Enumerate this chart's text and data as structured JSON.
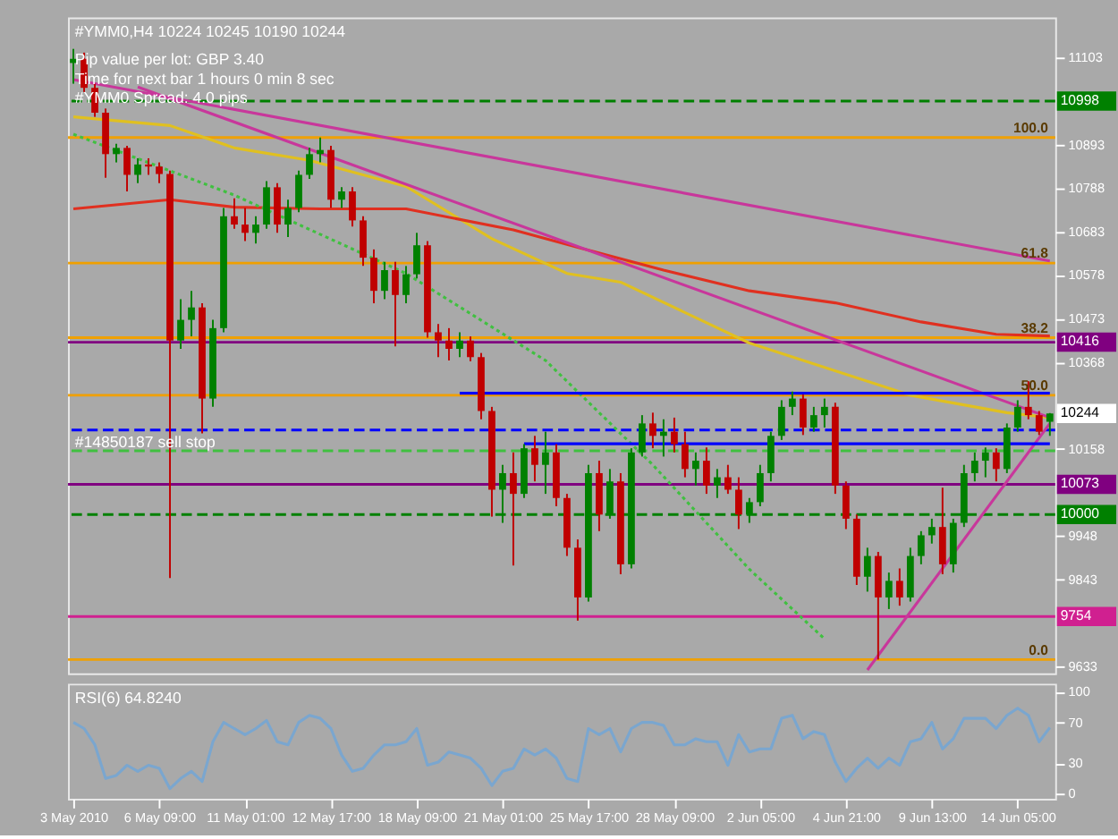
{
  "chart_data": [
    {
      "type": "candlestick",
      "title": "#YMM0,H4 10224 10245 10190 10244",
      "annotations": [
        "Pip value per lot: GBP 3.40",
        "Time for next bar 1 hours 0 min 8 sec",
        "#YMM0 Spread: 4.0 pips",
        "10244",
        {
          "text": "100.0",
          "y": 10910
        },
        {
          "text": "61.8",
          "y": 10607
        },
        {
          "text": "38.2",
          "y": 10427
        },
        {
          "text": "50.0",
          "y": 10288
        },
        {
          "text": "0.0",
          "y": 9650
        }
      ],
      "categories": [
        null,
        null,
        null,
        null,
        null,
        null,
        null,
        null,
        null,
        null,
        null,
        null,
        null,
        null,
        null,
        null,
        null,
        null,
        null,
        null,
        null,
        null,
        null,
        null,
        null,
        null,
        null,
        null,
        null,
        null,
        null,
        null,
        null,
        null,
        null,
        null,
        null,
        null,
        null,
        null,
        null,
        null,
        null,
        null,
        null,
        null,
        null,
        null,
        null,
        null,
        null,
        null,
        null,
        null,
        null,
        null,
        null,
        null,
        null,
        null,
        null,
        null,
        null,
        null,
        null,
        null,
        null,
        null,
        null,
        null,
        null,
        null,
        null,
        null,
        null,
        null,
        null,
        null,
        null,
        null,
        null,
        null,
        null,
        null,
        null,
        null,
        null,
        null,
        null,
        null,
        null,
        null
      ],
      "ohlc": [
        [
          11090,
          11124,
          11040,
          11100
        ],
        [
          11100,
          11115,
          11020,
          11030
        ],
        [
          11030,
          11040,
          10960,
          10970
        ],
        [
          10970,
          10980,
          10813,
          10870
        ],
        [
          10870,
          10895,
          10850,
          10885
        ],
        [
          10885,
          10890,
          10780,
          10820
        ],
        [
          10820,
          10860,
          10800,
          10845
        ],
        [
          10845,
          10860,
          10820,
          10840
        ],
        [
          10840,
          10850,
          10800,
          10822
        ],
        [
          10822,
          10830,
          9847,
          10420
        ],
        [
          10420,
          10520,
          10400,
          10470
        ],
        [
          10470,
          10540,
          10430,
          10500
        ],
        [
          10500,
          10510,
          10196,
          10280
        ],
        [
          10280,
          10470,
          10260,
          10450
        ],
        [
          10450,
          10740,
          10440,
          10720
        ],
        [
          10720,
          10763,
          10690,
          10700
        ],
        [
          10700,
          10740,
          10660,
          10680
        ],
        [
          10680,
          10720,
          10654,
          10700
        ],
        [
          10700,
          10805,
          10690,
          10790
        ],
        [
          10790,
          10800,
          10680,
          10700
        ],
        [
          10700,
          10760,
          10670,
          10740
        ],
        [
          10740,
          10830,
          10730,
          10820
        ],
        [
          10820,
          10885,
          10810,
          10870
        ],
        [
          10870,
          10910,
          10850,
          10880
        ],
        [
          10880,
          10890,
          10740,
          10760
        ],
        [
          10760,
          10790,
          10740,
          10780
        ],
        [
          10780,
          10790,
          10695,
          10710
        ],
        [
          10710,
          10720,
          10600,
          10620
        ],
        [
          10620,
          10640,
          10510,
          10540
        ],
        [
          10540,
          10610,
          10520,
          10590
        ],
        [
          10590,
          10610,
          10406,
          10530
        ],
        [
          10530,
          10600,
          10510,
          10580
        ],
        [
          10580,
          10680,
          10570,
          10650
        ],
        [
          10650,
          10660,
          10427,
          10440
        ],
        [
          10440,
          10460,
          10380,
          10420
        ],
        [
          10420,
          10450,
          10372,
          10400
        ],
        [
          10400,
          10440,
          10380,
          10420
        ],
        [
          10420,
          10430,
          10370,
          10380
        ],
        [
          10380,
          10390,
          10230,
          10250
        ],
        [
          10250,
          10260,
          9995,
          10060
        ],
        [
          10060,
          10120,
          9980,
          10100
        ],
        [
          10100,
          10150,
          9877,
          10050
        ],
        [
          10050,
          10170,
          10040,
          10160
        ],
        [
          10160,
          10190,
          10080,
          10120
        ],
        [
          10120,
          10200,
          10050,
          10150
        ],
        [
          10150,
          10170,
          10020,
          10040
        ],
        [
          10040,
          10050,
          9900,
          9920
        ],
        [
          9920,
          9940,
          9744,
          9800
        ],
        [
          9800,
          10120,
          9790,
          10100
        ],
        [
          10100,
          10130,
          9960,
          10000
        ],
        [
          10000,
          10110,
          9990,
          10080
        ],
        [
          10080,
          10100,
          9856,
          9880
        ],
        [
          9880,
          10160,
          9870,
          10150
        ],
        [
          10150,
          10240,
          10140,
          10220
        ],
        [
          10220,
          10246,
          10160,
          10190
        ],
        [
          10190,
          10230,
          10140,
          10200
        ],
        [
          10200,
          10234,
          10150,
          10170
        ],
        [
          10170,
          10200,
          10090,
          10110
        ],
        [
          10110,
          10150,
          10070,
          10130
        ],
        [
          10130,
          10162,
          10050,
          10070
        ],
        [
          10070,
          10110,
          10040,
          10090
        ],
        [
          10090,
          10120,
          10050,
          10060
        ],
        [
          10060,
          10090,
          9965,
          10000
        ],
        [
          10000,
          10040,
          9980,
          10030
        ],
        [
          10030,
          10120,
          10020,
          10100
        ],
        [
          10100,
          10200,
          10080,
          10190
        ],
        [
          10190,
          10276,
          10180,
          10260
        ],
        [
          10260,
          10297,
          10240,
          10280
        ],
        [
          10280,
          10290,
          10192,
          10210
        ],
        [
          10210,
          10260,
          10200,
          10240
        ],
        [
          10240,
          10280,
          10210,
          10260
        ],
        [
          10260,
          10270,
          10050,
          10070
        ],
        [
          10070,
          10080,
          9965,
          9990
        ],
        [
          9990,
          10000,
          9830,
          9850
        ],
        [
          9850,
          9920,
          9814,
          9900
        ],
        [
          9900,
          9910,
          9650,
          9800
        ],
        [
          9800,
          9860,
          9772,
          9840
        ],
        [
          9840,
          9870,
          9780,
          9800
        ],
        [
          9800,
          9920,
          9790,
          9900
        ],
        [
          9900,
          9960,
          9880,
          9950
        ],
        [
          9950,
          9990,
          9930,
          9970
        ],
        [
          9970,
          10065,
          9856,
          9880
        ],
        [
          9880,
          9990,
          9860,
          9980
        ],
        [
          9980,
          10120,
          9970,
          10100
        ],
        [
          10100,
          10150,
          10080,
          10130
        ],
        [
          10130,
          10162,
          10090,
          10150
        ],
        [
          10150,
          10160,
          10080,
          10110
        ],
        [
          10110,
          10220,
          10100,
          10210
        ],
        [
          10210,
          10276,
          10200,
          10260
        ],
        [
          10260,
          10322,
          10230,
          10240
        ],
        [
          10240,
          10250,
          10192,
          10200
        ],
        [
          10224,
          10245,
          10190,
          10244
        ]
      ],
      "colors": [
        "#008000",
        "#c00000",
        "#c00000",
        "#c00000",
        "#008000",
        "#c00000",
        "#008000",
        "#c00000",
        "#c00000",
        "#c00000",
        "#008000",
        "#008000",
        "#c00000",
        "#008000",
        "#008000",
        "#c00000",
        "#c00000",
        "#008000",
        "#008000",
        "#c00000",
        "#008000",
        "#008000",
        "#008000",
        "#008000",
        "#c00000",
        "#008000",
        "#c00000",
        "#c00000",
        "#c00000",
        "#008000",
        "#c00000",
        "#008000",
        "#008000",
        "#c00000",
        "#c00000",
        "#c00000",
        "#008000",
        "#c00000",
        "#c00000",
        "#c00000",
        "#008000",
        "#c00000",
        "#008000",
        "#c00000",
        "#008000",
        "#c00000",
        "#c00000",
        "#c00000",
        "#008000",
        "#c00000",
        "#008000",
        "#c00000",
        "#008000",
        "#008000",
        "#c00000",
        "#008000",
        "#c00000",
        "#c00000",
        "#008000",
        "#c00000",
        "#008000",
        "#c00000",
        "#c00000",
        "#008000",
        "#008000",
        "#008000",
        "#008000",
        "#008000",
        "#c00000",
        "#008000",
        "#008000",
        "#c00000",
        "#c00000",
        "#c00000",
        "#008000",
        "#c00000",
        "#008000",
        "#c00000",
        "#008000",
        "#008000",
        "#008000",
        "#c00000",
        "#008000",
        "#008000",
        "#008000",
        "#008000",
        "#c00000",
        "#008000",
        "#008000",
        "#c00000",
        "#c00000",
        "#008000"
      ],
      "series": [
        {
          "type": "line",
          "color": "#e0c020",
          "values": [
            10960,
            null,
            null,
            null,
            null,
            null,
            null,
            null,
            null,
            10939,
            null,
            null,
            null,
            null,
            null,
            10885,
            null,
            null,
            null,
            null,
            null,
            null,
            10855,
            null,
            null,
            null,
            null,
            null,
            null,
            null,
            null,
            10792,
            null,
            null,
            null,
            null,
            null,
            null,
            null,
            10666,
            null,
            null,
            null,
            null,
            null,
            null,
            10582,
            null,
            null,
            null,
            null,
            10561,
            null,
            null,
            null,
            null,
            null,
            null,
            null,
            null,
            null,
            null,
            null,
            10414,
            null,
            null,
            null,
            null,
            null,
            null,
            null,
            null,
            null,
            null,
            null,
            null,
            null,
            null,
            10288,
            null,
            null,
            null,
            null,
            null,
            null,
            null,
            null,
            10246,
            null,
            null,
            null,
            10234
          ]
        },
        {
          "type": "line",
          "color": "#e03020",
          "values": [
            10738,
            null,
            null,
            null,
            null,
            null,
            null,
            null,
            null,
            10760,
            null,
            null,
            null,
            null,
            null,
            10742,
            null,
            null,
            null,
            null,
            null,
            null,
            null,
            10738,
            null,
            null,
            null,
            null,
            null,
            null,
            null,
            10738,
            null,
            null,
            null,
            null,
            null,
            null,
            null,
            null,
            null,
            10687,
            null,
            null,
            null,
            null,
            null,
            10645,
            null,
            null,
            null,
            null,
            null,
            null,
            null,
            10590,
            null,
            null,
            null,
            null,
            null,
            null,
            null,
            10540,
            null,
            null,
            null,
            null,
            null,
            null,
            null,
            10511,
            null,
            null,
            null,
            null,
            null,
            null,
            null,
            10465,
            null,
            null,
            null,
            null,
            null,
            null,
            10435,
            null,
            null,
            null,
            null,
            10431
          ]
        },
        {
          "type": "line",
          "color": "#40c040",
          "line_style": "dotted",
          "values": [
            10918,
            null,
            null,
            null,
            null,
            null,
            null,
            null,
            null,
            null,
            null,
            null,
            null,
            null,
            null,
            10771,
            null,
            null,
            null,
            null,
            null,
            null,
            null,
            null,
            null,
            null,
            null,
            null,
            null,
            null,
            null,
            10582,
            null,
            null,
            null,
            null,
            null,
            null,
            null,
            null,
            null,
            null,
            null,
            null,
            10372,
            null,
            null,
            null,
            null,
            null,
            null,
            null,
            null,
            null,
            10120,
            null,
            null,
            null,
            null,
            null,
            null,
            null,
            null,
            9868,
            null,
            null,
            null,
            null,
            null,
            null,
            9700,
            null,
            null,
            null,
            null,
            null,
            null,
            null,
            null,
            null,
            null,
            null,
            null,
            null,
            null,
            null,
            null,
            null,
            null,
            null,
            null,
            null
          ]
        },
        {
          "type": "line",
          "color": "#c8379b",
          "values": [
            11050,
            null,
            null,
            null,
            null,
            null,
            null,
            null,
            null,
            null,
            null,
            null,
            null,
            null,
            null,
            null,
            null,
            null,
            null,
            null,
            null,
            null,
            null,
            null,
            null,
            null,
            null,
            null,
            null,
            null,
            null,
            null,
            null,
            null,
            null,
            null,
            null,
            null,
            null,
            null,
            null,
            null,
            null,
            null,
            null,
            null,
            null,
            null,
            null,
            null,
            null,
            null,
            null,
            null,
            null,
            null,
            null,
            null,
            null,
            null,
            null,
            null,
            null,
            null,
            null,
            null,
            null,
            null,
            null,
            null,
            null,
            null,
            null,
            null,
            null,
            null,
            null,
            null,
            null,
            null,
            null,
            null,
            null,
            null,
            null,
            null,
            null,
            null,
            null,
            null,
            null,
            10612
          ]
        },
        {
          "type": "line",
          "color": "#c8379b",
          "values": [
            null,
            null,
            null,
            null,
            null,
            null,
            11032,
            null,
            null,
            null,
            null,
            null,
            null,
            null,
            null,
            null,
            null,
            null,
            null,
            null,
            null,
            null,
            null,
            null,
            null,
            null,
            null,
            null,
            null,
            null,
            null,
            null,
            null,
            null,
            null,
            null,
            null,
            null,
            null,
            null,
            null,
            null,
            null,
            null,
            null,
            null,
            null,
            null,
            null,
            null,
            null,
            null,
            null,
            null,
            null,
            null,
            null,
            null,
            null,
            null,
            null,
            null,
            null,
            null,
            null,
            null,
            null,
            null,
            null,
            null,
            null,
            null,
            null,
            null,
            null,
            null,
            null,
            null,
            null,
            null,
            null,
            null,
            null,
            null,
            null,
            null,
            null,
            null,
            null,
            null,
            null,
            10234
          ]
        },
        {
          "type": "line",
          "color": "#c8379b",
          "values": [
            null,
            null,
            null,
            null,
            null,
            null,
            null,
            null,
            null,
            null,
            null,
            null,
            null,
            null,
            null,
            null,
            null,
            null,
            null,
            null,
            null,
            null,
            null,
            null,
            null,
            null,
            null,
            null,
            null,
            null,
            null,
            null,
            null,
            null,
            null,
            null,
            null,
            null,
            null,
            null,
            null,
            null,
            null,
            null,
            null,
            null,
            null,
            null,
            null,
            null,
            null,
            null,
            null,
            null,
            null,
            null,
            null,
            null,
            null,
            null,
            null,
            null,
            null,
            null,
            null,
            null,
            null,
            null,
            null,
            null,
            null,
            null,
            null,
            null,
            9625,
            null,
            null,
            null,
            null,
            null,
            null,
            null,
            null,
            null,
            null,
            null,
            null,
            null,
            null,
            null,
            null,
            10220
          ]
        },
        {
          "type": "line",
          "color": "#0000ff",
          "values": [
            null,
            null,
            null,
            null,
            null,
            null,
            null,
            null,
            null,
            null,
            null,
            null,
            null,
            null,
            null,
            null,
            null,
            null,
            null,
            null,
            null,
            null,
            null,
            null,
            null,
            null,
            null,
            null,
            null,
            null,
            null,
            null,
            null,
            null,
            null,
            null,
            10293,
            null,
            null,
            null,
            null,
            null,
            null,
            null,
            null,
            null,
            null,
            null,
            null,
            null,
            null,
            null,
            null,
            null,
            null,
            null,
            null,
            null,
            null,
            null,
            null,
            null,
            null,
            null,
            null,
            null,
            null,
            null,
            null,
            null,
            null,
            null,
            null,
            null,
            null,
            null,
            null,
            null,
            null,
            null,
            null,
            null,
            null,
            null,
            null,
            null,
            null,
            null,
            null,
            null,
            null,
            10293
          ]
        },
        {
          "type": "line",
          "color": "#0000ff",
          "values": [
            null,
            null,
            null,
            null,
            null,
            null,
            null,
            null,
            null,
            null,
            null,
            null,
            null,
            null,
            null,
            null,
            null,
            null,
            null,
            null,
            null,
            null,
            null,
            null,
            null,
            null,
            null,
            null,
            null,
            null,
            null,
            null,
            null,
            null,
            null,
            null,
            null,
            null,
            null,
            null,
            null,
            null,
            10171,
            null,
            null,
            null,
            null,
            null,
            null,
            null,
            null,
            null,
            null,
            null,
            null,
            null,
            null,
            null,
            null,
            null,
            null,
            null,
            null,
            null,
            null,
            null,
            null,
            null,
            null,
            null,
            null,
            null,
            null,
            null,
            null,
            null,
            null,
            null,
            null,
            null,
            null,
            null,
            null,
            null,
            null,
            null,
            null,
            null,
            null,
            null,
            null,
            10171
          ]
        }
      ],
      "ref_lines": [
        {
          "axis": "y",
          "value": 10998,
          "label": "10998",
          "color": "#008000",
          "line_style": "dashed"
        },
        {
          "axis": "y",
          "value": 10910,
          "color": "#f0a000"
        },
        {
          "axis": "y",
          "value": 10607,
          "color": "#f0a000"
        },
        {
          "axis": "y",
          "value": 10427,
          "color": "#f0a000"
        },
        {
          "axis": "y",
          "value": 10416,
          "label": "10416",
          "color": "#800080"
        },
        {
          "axis": "y",
          "value": 10288,
          "color": "#f0a000"
        },
        {
          "axis": "y",
          "value": 10204,
          "label": "#14850187 sell stop",
          "color": "#0000ff",
          "line_style": "dashed"
        },
        {
          "axis": "y",
          "value": 10154,
          "color": "#40c040",
          "line_style": "dashed"
        },
        {
          "axis": "y",
          "value": 10073,
          "label": "10073",
          "color": "#800080"
        },
        {
          "axis": "y",
          "value": 10000,
          "label": "10000",
          "color": "#008000",
          "line_style": "dashed"
        },
        {
          "axis": "y",
          "value": 9754,
          "label": "9754",
          "color": "#d02090"
        },
        {
          "axis": "y",
          "value": 9650,
          "color": "#f0a000"
        }
      ],
      "ylim": [
        9617,
        11200
      ],
      "yticks": [
        11103,
        10893,
        10788,
        10683,
        10578,
        10473,
        10368,
        10158,
        9948,
        9843,
        9633
      ],
      "tick_labels": "y"
    },
    {
      "type": "line",
      "title": "RSI(6) 64.8240",
      "categories": [
        "3 May 2010",
        null,
        null,
        null,
        null,
        null,
        null,
        null,
        "6 May 09:00",
        null,
        null,
        null,
        null,
        null,
        null,
        null,
        "11 May 01:00",
        null,
        null,
        null,
        null,
        null,
        null,
        null,
        "12 May 17:00",
        null,
        null,
        null,
        null,
        null,
        null,
        null,
        "18 May 09:00",
        null,
        null,
        null,
        null,
        null,
        null,
        null,
        "21 May 01:00",
        null,
        null,
        null,
        null,
        null,
        null,
        null,
        "25 May 17:00",
        null,
        null,
        null,
        null,
        null,
        null,
        null,
        "28 May 09:00",
        null,
        null,
        null,
        null,
        null,
        null,
        null,
        "2 Jun 05:00",
        null,
        null,
        null,
        null,
        null,
        null,
        null,
        "4 Jun 21:00",
        null,
        null,
        null,
        null,
        null,
        null,
        null,
        "9 Jun 13:00",
        null,
        null,
        null,
        null,
        null,
        null,
        null,
        "14 Jun 05:00",
        null,
        null,
        null
      ],
      "series": [
        {
          "color": "#7aa6cf",
          "values": [
            70,
            64,
            48,
            15,
            18,
            28,
            22,
            28,
            25,
            5,
            15,
            22,
            12,
            51,
            70,
            64,
            58,
            64,
            72,
            51,
            48,
            70,
            77,
            74,
            64,
            38,
            22,
            25,
            38,
            48,
            48,
            51,
            64,
            28,
            31,
            41,
            38,
            35,
            25,
            8,
            22,
            25,
            44,
            38,
            44,
            35,
            15,
            12,
            64,
            58,
            64,
            41,
            64,
            70,
            70,
            67,
            48,
            48,
            54,
            51,
            51,
            28,
            58,
            41,
            44,
            44,
            74,
            77,
            54,
            61,
            58,
            31,
            12,
            25,
            35,
            25,
            35,
            28,
            51,
            54,
            70,
            44,
            54,
            74,
            74,
            74,
            64,
            77,
            84,
            77,
            51,
            65
          ]
        }
      ],
      "ylim": [
        -5,
        108
      ],
      "yticks": [
        100,
        70,
        30,
        0
      ]
    }
  ]
}
